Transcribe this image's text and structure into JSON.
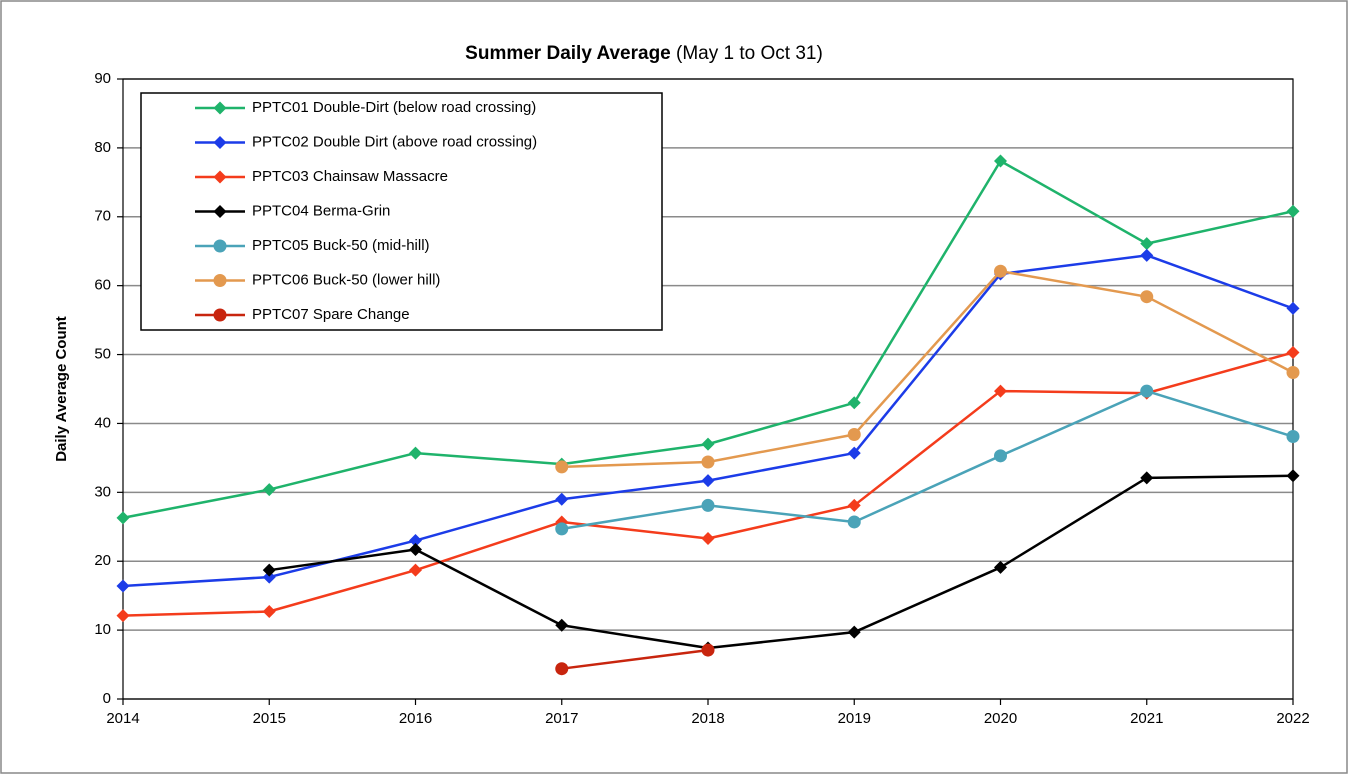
{
  "chart_data": {
    "type": "line",
    "title": "Summer Daily Average",
    "title_note": "(May 1 to Oct 31)",
    "y_label": "Daily Average Count",
    "x": [
      2014,
      2015,
      2016,
      2017,
      2018,
      2019,
      2020,
      2021,
      2022
    ],
    "xlim": [
      2014,
      2022
    ],
    "xticks": [
      2014,
      2015,
      2016,
      2017,
      2018,
      2019,
      2020,
      2021,
      2022
    ],
    "ylim": [
      0,
      90
    ],
    "yticks": [
      0,
      10,
      20,
      30,
      40,
      50,
      60,
      70,
      80,
      90
    ],
    "grid": true,
    "legend": "upper left",
    "series": [
      {
        "name": "PPTC01 Double-Dirt (below road crossing)",
        "color": "#1fb36b",
        "marker": "diamond",
        "values": [
          26.3,
          30.4,
          35.7,
          34.1,
          37.0,
          43.0,
          78.1,
          66.1,
          70.8
        ]
      },
      {
        "name": "PPTC02 Double Dirt (above road crossing)",
        "color": "#1c3ce8",
        "marker": "diamond",
        "values": [
          16.4,
          17.7,
          23.0,
          29.0,
          31.7,
          35.7,
          61.7,
          64.4,
          56.7
        ]
      },
      {
        "name": "PPTC03 Chainsaw Massacre",
        "color": "#f43c1c",
        "marker": "diamond",
        "values": [
          12.1,
          12.7,
          18.7,
          25.7,
          23.3,
          28.1,
          44.7,
          44.4,
          50.3
        ]
      },
      {
        "name": "PPTC04 Berma-Grin",
        "color": "#000000",
        "marker": "diamond",
        "values": [
          null,
          18.7,
          21.7,
          10.7,
          7.4,
          9.7,
          19.1,
          32.1,
          32.4
        ]
      },
      {
        "name": "PPTC05 Buck-50 (mid-hill)",
        "color": "#4aa3b8",
        "marker": "circle",
        "values": [
          null,
          null,
          null,
          24.7,
          28.1,
          25.7,
          35.3,
          44.7,
          38.1
        ]
      },
      {
        "name": "PPTC06 Buck-50 (lower hill)",
        "color": "#e3994f",
        "marker": "circle",
        "values": [
          null,
          null,
          null,
          33.7,
          34.4,
          38.4,
          62.1,
          58.4,
          47.4
        ]
      },
      {
        "name": "PPTC07 Spare Change",
        "color": "#c8250e",
        "marker": "circle",
        "values": [
          null,
          null,
          null,
          4.4,
          7.1,
          null,
          null,
          null,
          null
        ]
      }
    ]
  }
}
